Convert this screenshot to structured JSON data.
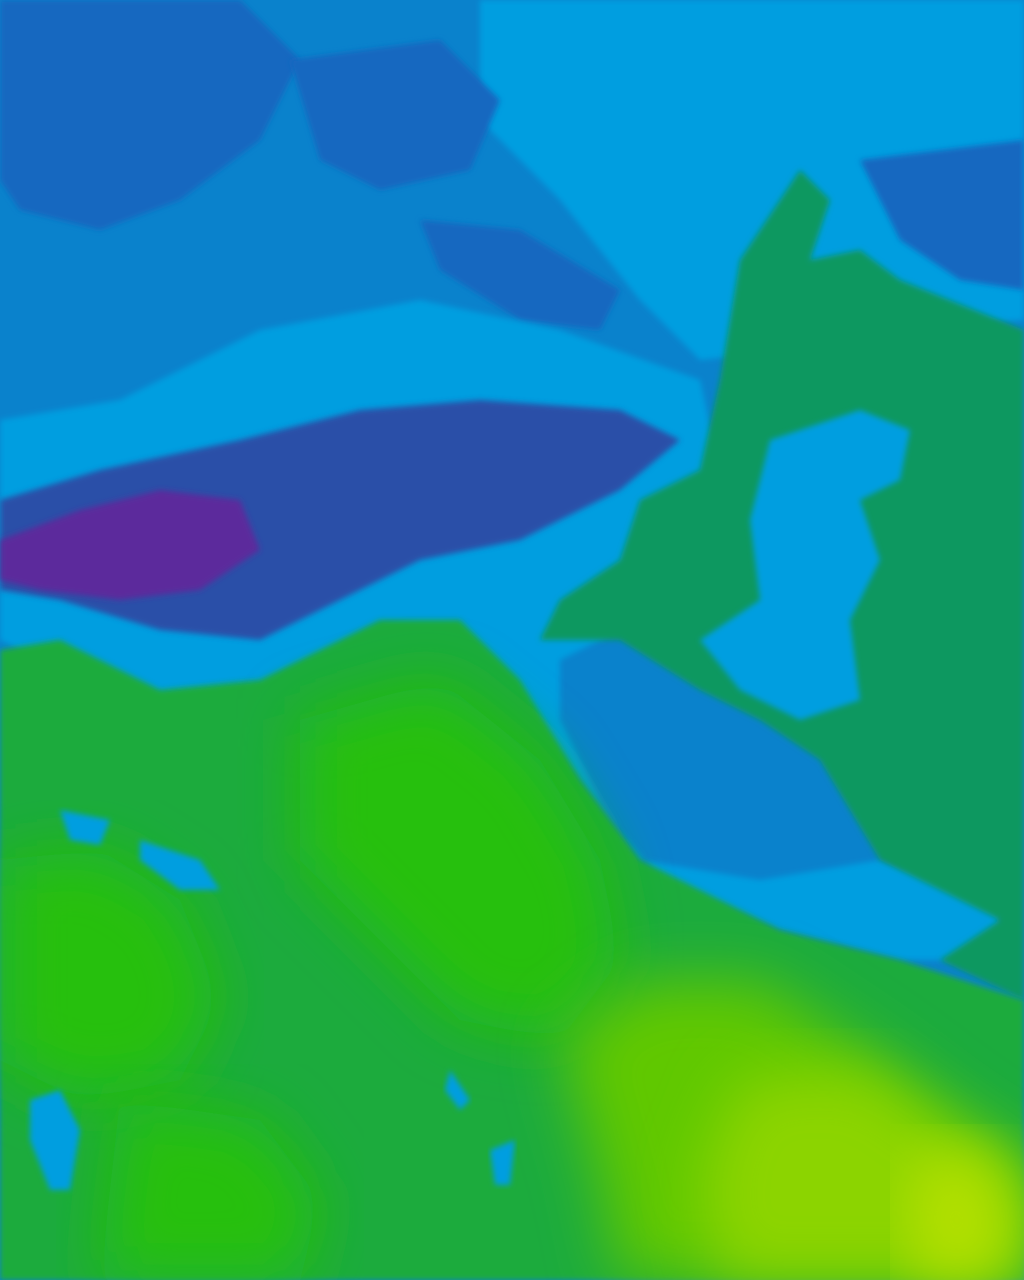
{
  "map": {
    "kind": "contour-raster-tile",
    "labels": [],
    "palette": {
      "purple": "#5b2a9c",
      "indigo": "#2a4fa8",
      "dark_blue": "#1468c0",
      "blue": "#0a82cc",
      "sky_blue": "#009ee0",
      "teal_green": "#0a9860",
      "green": "#1aab3c",
      "bright_green": "#28c010",
      "lime": "#60c800",
      "yellow_green": "#8cd400",
      "yellow": "#b4e000"
    }
  }
}
